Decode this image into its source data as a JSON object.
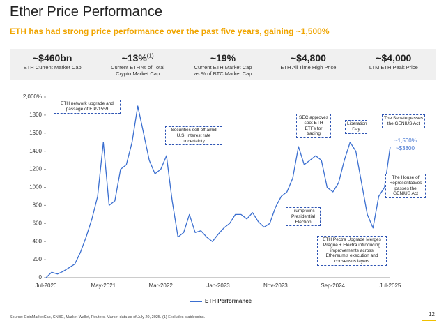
{
  "header": {
    "title": "Ether Price Performance",
    "subtitle": "ETH has had strong price performance over the past five years, gaining ~1,500%"
  },
  "stats": [
    {
      "value": "~$460bn",
      "label": "ETH Current Market Cap"
    },
    {
      "value": "~13%",
      "sup": "(1)",
      "label": "Current ETH % of Total Crypto Market Cap"
    },
    {
      "value": "~19%",
      "label": "Current ETH Market Cap as % of BTC Market Cap"
    },
    {
      "value": "~$4,800",
      "label": "ETH All Time High Price"
    },
    {
      "value": "~$4,000",
      "label": "LTM ETH Peak Price"
    }
  ],
  "chart_data": {
    "type": "line",
    "categories": [
      "Jul-2020",
      null,
      null,
      null,
      null,
      null,
      null,
      null,
      null,
      null,
      "May-2021",
      null,
      null,
      null,
      null,
      null,
      null,
      null,
      null,
      null,
      "Mar-2022",
      null,
      null,
      null,
      null,
      null,
      null,
      null,
      null,
      null,
      "Jan-2023",
      null,
      null,
      null,
      null,
      null,
      null,
      null,
      null,
      null,
      "Nov-2023",
      null,
      null,
      null,
      null,
      null,
      null,
      null,
      null,
      null,
      "Sep-2024",
      null,
      null,
      null,
      null,
      null,
      null,
      null,
      null,
      null,
      "Jul-2025"
    ],
    "series": [
      {
        "name": "ETH Performance",
        "color": "#3b6fd0",
        "values": [
          0,
          60,
          40,
          70,
          110,
          150,
          280,
          450,
          650,
          900,
          1500,
          800,
          850,
          1200,
          1250,
          1500,
          1900,
          1600,
          1300,
          1150,
          1200,
          1350,
          850,
          450,
          500,
          700,
          500,
          520,
          450,
          400,
          480,
          550,
          600,
          700,
          700,
          650,
          720,
          620,
          560,
          600,
          780,
          900,
          950,
          1100,
          1450,
          1250,
          1300,
          1350,
          1300,
          1000,
          950,
          1050,
          1300,
          1500,
          1400,
          1050,
          700,
          550,
          900,
          1000,
          1450
        ]
      }
    ],
    "ylim": [
      0,
      2000
    ],
    "yticks": [
      0,
      200,
      400,
      600,
      800,
      1000,
      1200,
      1400,
      1600,
      1800,
      {
        "value": 2000,
        "label": "2,000%"
      }
    ],
    "annotations": [
      "ETH network upgrade and passage of EIP-1559",
      "Securities sell-off amid U.S. interest rate uncertainty",
      "SEC approves spot ETH ETFs for trading",
      "Liberation Day",
      "The Senate passes the GENIUS Act",
      "The House of Representatives passes the GENIUS Act",
      "Trump wins Presidential Election",
      "ETH Pectra Upgrade Merges Prague + Electra introducing improvements across Ethereum's execution and consensus layers"
    ],
    "callouts": [
      "~1,500%",
      "~$3800"
    ],
    "legend": "bottom"
  },
  "footer": {
    "source": "Source: CoinMarketCap, CNBC, Market Wallet, Reuters. Market data as of July 20, 2025. (1) Excludes stablecoins.",
    "page": "12"
  }
}
